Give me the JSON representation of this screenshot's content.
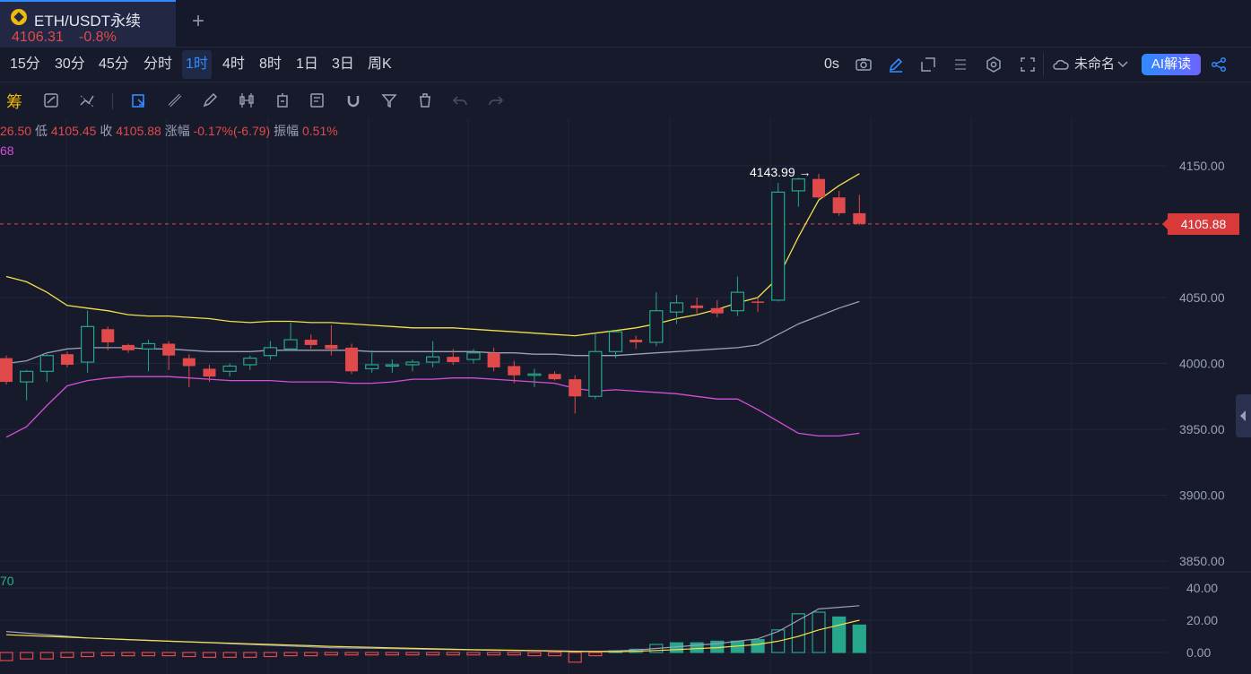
{
  "tab": {
    "symbol": "ETH/USDT永续",
    "price": "4106.31",
    "change": "-0.8%",
    "add_label": "+"
  },
  "intervals": [
    "15分",
    "30分",
    "45分",
    "分时",
    "1时",
    "4时",
    "8时",
    "1日",
    "3日",
    "周K"
  ],
  "active_interval": "1时",
  "toolbar": {
    "countdown": "0s",
    "layout_name": "未命名",
    "ai_label": "AI解读"
  },
  "drawing_tools": {
    "chip_label": "筹"
  },
  "ohlc": {
    "high_partial": "26.50",
    "low_label": "低",
    "low": "4105.45",
    "close_label": "收",
    "close": "4105.88",
    "change_label": "涨幅",
    "change": "-0.17%(-6.79)",
    "amp_label": "振幅",
    "amp": "0.51%"
  },
  "ma_readout": "68",
  "volume_readout": "70",
  "price_tag": "4105.88",
  "peak_label": "4143.99",
  "peak_arrow": "→",
  "colors": {
    "up": "#26a68a",
    "down": "#e04a4a",
    "ma_yellow": "#f5e04a",
    "ma_gray": "#9aa0b6",
    "ma_pink": "#d44fd8",
    "accent": "#2f8cff"
  },
  "chart_data": {
    "type": "candlestick",
    "price_axis": {
      "ticks": [
        4150,
        4100,
        4050,
        4000,
        3950,
        3900,
        3850
      ],
      "labels": [
        "4150.00",
        "4050.00",
        "4000.00",
        "3950.00",
        "3900.00",
        "3850.00"
      ],
      "range": [
        3835,
        4170
      ]
    },
    "volume_axis": {
      "labels": [
        "40.00",
        "20.00",
        "0.00"
      ],
      "range": [
        -5,
        45
      ]
    },
    "candles": [
      [
        4004,
        4006,
        3984,
        3986
      ],
      [
        3986,
        3995,
        3972,
        3994
      ],
      [
        3994,
        4007,
        3986,
        4006
      ],
      [
        4007,
        4009,
        3997,
        3999
      ],
      [
        4001,
        4040,
        3993,
        4028
      ],
      [
        4026,
        4028,
        4010,
        4016
      ],
      [
        4014,
        4015,
        4008,
        4010
      ],
      [
        4011,
        4018,
        3994,
        4015
      ],
      [
        4015,
        4017,
        3995,
        4006
      ],
      [
        4004,
        4007,
        3982,
        3998
      ],
      [
        3996,
        3999,
        3986,
        3990
      ],
      [
        3994,
        4000,
        3990,
        3998
      ],
      [
        3999,
        4006,
        3995,
        4004
      ],
      [
        4006,
        4017,
        4003,
        4012
      ],
      [
        4011,
        4031,
        4010,
        4018
      ],
      [
        4018,
        4022,
        4011,
        4014
      ],
      [
        4014,
        4029,
        4006,
        4011
      ],
      [
        4012,
        4015,
        3992,
        3994
      ],
      [
        3996,
        4010,
        3993,
        3999
      ],
      [
        3998,
        4003,
        3993,
        3999
      ],
      [
        3999,
        4003,
        3994,
        4001
      ],
      [
        4001,
        4017,
        3997,
        4005
      ],
      [
        4005,
        4011,
        3999,
        4001
      ],
      [
        4003,
        4011,
        4000,
        4008
      ],
      [
        4008,
        4012,
        3994,
        3997
      ],
      [
        3998,
        4002,
        3985,
        3991
      ],
      [
        3992,
        3996,
        3982,
        3992
      ],
      [
        3992,
        3994,
        3987,
        3988
      ],
      [
        3988,
        3991,
        3962,
        3975
      ],
      [
        3975,
        4022,
        3973,
        4009
      ],
      [
        4009,
        4025,
        4004,
        4024
      ],
      [
        4018,
        4021,
        4011,
        4016
      ],
      [
        4016,
        4054,
        4013,
        4040
      ],
      [
        4039,
        4052,
        4030,
        4046
      ],
      [
        4044,
        4050,
        4038,
        4042
      ],
      [
        4042,
        4048,
        4035,
        4038
      ],
      [
        4040,
        4066,
        4036,
        4054
      ],
      [
        4047,
        4050,
        4039,
        4046
      ],
      [
        4048,
        4137,
        4047,
        4130
      ],
      [
        4131,
        4141,
        4119,
        4140
      ],
      [
        4140,
        4144,
        4125,
        4126
      ],
      [
        4126,
        4131,
        4112,
        4114
      ],
      [
        4114,
        4128,
        4105,
        4106
      ]
    ],
    "ma_yellow": [
      4066,
      4062,
      4054,
      4044,
      4042,
      4040,
      4037,
      4036,
      4036,
      4035,
      4034,
      4032,
      4031,
      4032,
      4032,
      4031,
      4031,
      4030,
      4029,
      4028,
      4027,
      4027,
      4027,
      4026,
      4025,
      4024,
      4023,
      4022,
      4021,
      4023,
      4025,
      4027,
      4030,
      4034,
      4037,
      4041,
      4046,
      4050,
      4065,
      4096,
      4124,
      4135,
      4144
    ],
    "ma_gray": [
      4000,
      4002,
      4008,
      4011,
      4012,
      4012,
      4012,
      4011,
      4011,
      4010,
      4009,
      4009,
      4009,
      4010,
      4010,
      4010,
      4010,
      4010,
      4009,
      4009,
      4009,
      4009,
      4009,
      4009,
      4008,
      4008,
      4007,
      4007,
      4006,
      4006,
      4006,
      4007,
      4008,
      4009,
      4010,
      4011,
      4012,
      4014,
      4022,
      4030,
      4036,
      4042,
      4047
    ],
    "ma_pink": [
      3944,
      3952,
      3968,
      3983,
      3987,
      3989,
      3990,
      3990,
      3990,
      3989,
      3988,
      3987,
      3987,
      3987,
      3986,
      3986,
      3986,
      3985,
      3985,
      3986,
      3988,
      3988,
      3989,
      3989,
      3988,
      3987,
      3986,
      3985,
      3981,
      3979,
      3980,
      3979,
      3978,
      3977,
      3975,
      3973,
      3973,
      3965,
      3956,
      3947,
      3945,
      3945,
      3947
    ],
    "volume": [
      -5,
      -4,
      -4,
      -3,
      -2.5,
      -2,
      -2,
      -2,
      -2,
      -2.5,
      -3,
      -3,
      -3,
      -2.5,
      -2,
      -2,
      -1.5,
      -1.5,
      -1.5,
      -1.5,
      -1.5,
      -1.5,
      -1.5,
      -1.5,
      -1.5,
      -1.5,
      -2,
      -2,
      -6,
      -2,
      1,
      2,
      5,
      6,
      6,
      7,
      7,
      8,
      14,
      24,
      25,
      22,
      17
    ],
    "vol_line_gray": [
      13,
      12,
      11,
      10,
      9,
      8.5,
      8,
      7.5,
      7,
      6.5,
      6,
      5.5,
      5,
      4.5,
      4,
      3.5,
      3,
      2.8,
      2.6,
      2.4,
      2.2,
      2,
      1.8,
      1.6,
      1.4,
      1.2,
      1,
      0.8,
      0.5,
      0.6,
      1,
      1.5,
      2.5,
      3.5,
      4.5,
      5.5,
      7,
      8.5,
      13,
      20,
      27,
      28,
      29
    ],
    "vol_line_yellow": [
      11,
      10.5,
      10,
      9.5,
      9,
      8.5,
      8,
      7.5,
      7,
      6.6,
      6.2,
      5.8,
      5.4,
      5,
      4.6,
      4.2,
      3.8,
      3.5,
      3.2,
      2.9,
      2.6,
      2.3,
      2,
      1.8,
      1.6,
      1.4,
      1.2,
      1,
      0.8,
      0.6,
      0.5,
      0.8,
      1.2,
      1.8,
      2.4,
      3,
      4,
      5,
      7,
      10,
      14,
      17,
      20
    ]
  }
}
